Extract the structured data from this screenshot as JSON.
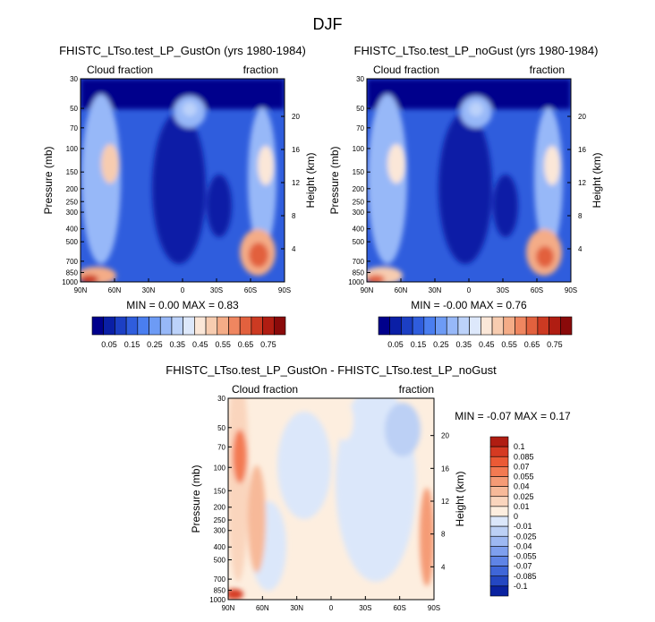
{
  "figure": {
    "title": "DJF"
  },
  "panels": [
    {
      "id": "gust-on",
      "title": "FHISTC_LTso.test_LP_GustOn (yrs 1980-1984)",
      "left_label": "Cloud fraction",
      "right_label": "fraction",
      "stats": "MIN =   0.00   MAX =   0.83"
    },
    {
      "id": "no-gust",
      "title": "FHISTC_LTso.test_LP_noGust (yrs 1980-1984)",
      "left_label": "Cloud fraction",
      "right_label": "fraction",
      "stats": "MIN =  -0.00   MAX =   0.76"
    },
    {
      "id": "difference",
      "title": "FHISTC_LTso.test_LP_GustOn - FHISTC_LTso.test_LP_noGust",
      "left_label": "Cloud fraction",
      "right_label": "fraction",
      "stats": "MIN =   -0.07   MAX =   0.17"
    }
  ],
  "axes": {
    "ylabel": "Pressure (mb)",
    "y2label": "Height (km)",
    "pressure_ticks": [
      "30",
      "50",
      "70",
      "100",
      "150",
      "200",
      "250",
      "300",
      "400",
      "500",
      "700",
      "850",
      "1000"
    ],
    "height_ticks": [
      "20",
      "16",
      "12",
      "8",
      "4"
    ],
    "lat_ticks": [
      "90N",
      "60N",
      "30N",
      "0",
      "30S",
      "60S",
      "90S"
    ]
  },
  "colorbars": {
    "absolute": {
      "labels": [
        "0.05",
        "0.15",
        "0.25",
        "0.35",
        "0.45",
        "0.55",
        "0.65",
        "0.75"
      ],
      "colors": [
        "#00008c",
        "#0a1fa6",
        "#1c3fc4",
        "#2f5ddd",
        "#4a7ef0",
        "#6d9bf5",
        "#97b8f8",
        "#bcd2fa",
        "#dde8fb",
        "#fbe7d8",
        "#f7ccb0",
        "#f4ac87",
        "#ef8660",
        "#e2613e",
        "#cc3a22",
        "#b01d12",
        "#8a0a0a"
      ]
    },
    "difference": {
      "labels": [
        "0.1",
        "0.085",
        "0.07",
        "0.055",
        "0.04",
        "0.025",
        "0.01",
        "0",
        "-0.01",
        "-0.025",
        "-0.04",
        "-0.055",
        "-0.07",
        "-0.085",
        "-0.1"
      ],
      "colors": [
        "#b01d12",
        "#d53a22",
        "#eb5a35",
        "#f37a52",
        "#f59b76",
        "#f7b999",
        "#fad5bd",
        "#fdeedf",
        "#dbe7fa",
        "#bcd0f5",
        "#9db8f2",
        "#7e9fee",
        "#5f84e6",
        "#3f66d8",
        "#2447c2",
        "#0a22a0"
      ]
    }
  },
  "chart_data": [
    {
      "type": "heatmap",
      "title": "FHISTC_LTso.test_LP_GustOn (yrs 1980-1984)",
      "xlabel": "",
      "ylabel": "Pressure (mb)",
      "y2label": "Height (km)",
      "x": [
        "90N",
        "60N",
        "30N",
        "0",
        "30S",
        "60S",
        "90S"
      ],
      "y": [
        30,
        50,
        70,
        100,
        150,
        200,
        250,
        300,
        400,
        500,
        700,
        850,
        1000
      ],
      "value_range": [
        0.0,
        0.83
      ],
      "features": [
        {
          "lat": 52,
          "p": 420,
          "value": 0.4
        },
        {
          "lat": 77,
          "p": 990,
          "value": 0.65
        },
        {
          "lat": -4,
          "p": 150,
          "value": 0.3
        },
        {
          "lat": -53,
          "p": 850,
          "value": 0.8
        },
        {
          "lat": -55,
          "p": 1000,
          "value": 0.5
        },
        {
          "lat": -74,
          "p": 420,
          "value": 0.4
        },
        {
          "lat": 35,
          "p": 500,
          "value": 0.0
        },
        {
          "lat": -28,
          "p": 500,
          "value": 0.03
        }
      ]
    },
    {
      "type": "heatmap",
      "title": "FHISTC_LTso.test_LP_noGust (yrs 1980-1984)",
      "xlabel": "",
      "ylabel": "Pressure (mb)",
      "y2label": "Height (km)",
      "x": [
        "90N",
        "60N",
        "30N",
        "0",
        "30S",
        "60S",
        "90S"
      ],
      "y": [
        30,
        50,
        70,
        100,
        150,
        200,
        250,
        300,
        400,
        500,
        700,
        850,
        1000
      ],
      "value_range": [
        -0.0,
        0.76
      ],
      "features": [
        {
          "lat": 52,
          "p": 420,
          "value": 0.38
        },
        {
          "lat": 77,
          "p": 990,
          "value": 0.6
        },
        {
          "lat": -4,
          "p": 150,
          "value": 0.3
        },
        {
          "lat": -53,
          "p": 850,
          "value": 0.7
        },
        {
          "lat": -55,
          "p": 1000,
          "value": 0.45
        },
        {
          "lat": -74,
          "p": 420,
          "value": 0.38
        },
        {
          "lat": 35,
          "p": 500,
          "value": 0.0
        },
        {
          "lat": -28,
          "p": 500,
          "value": 0.03
        }
      ]
    },
    {
      "type": "heatmap",
      "title": "FHISTC_LTso.test_LP_GustOn - FHISTC_LTso.test_LP_noGust",
      "xlabel": "",
      "ylabel": "Pressure (mb)",
      "y2label": "Height (km)",
      "x": [
        "90N",
        "60N",
        "30N",
        "0",
        "30S",
        "60S",
        "90S"
      ],
      "y": [
        30,
        50,
        70,
        100,
        150,
        200,
        250,
        300,
        400,
        500,
        700,
        850,
        1000
      ],
      "value_range": [
        -0.07,
        0.17
      ],
      "features": [
        {
          "lat": 85,
          "p": 300,
          "value": 0.07
        },
        {
          "lat": 86,
          "p": 1000,
          "value": 0.1
        },
        {
          "lat": 68,
          "p": 600,
          "value": 0.03
        },
        {
          "lat": 45,
          "p": 500,
          "value": -0.02
        },
        {
          "lat": -10,
          "p": 400,
          "value": 0.01
        },
        {
          "lat": -60,
          "p": 250,
          "value": -0.02
        },
        {
          "lat": -84,
          "p": 650,
          "value": 0.05
        }
      ]
    }
  ]
}
